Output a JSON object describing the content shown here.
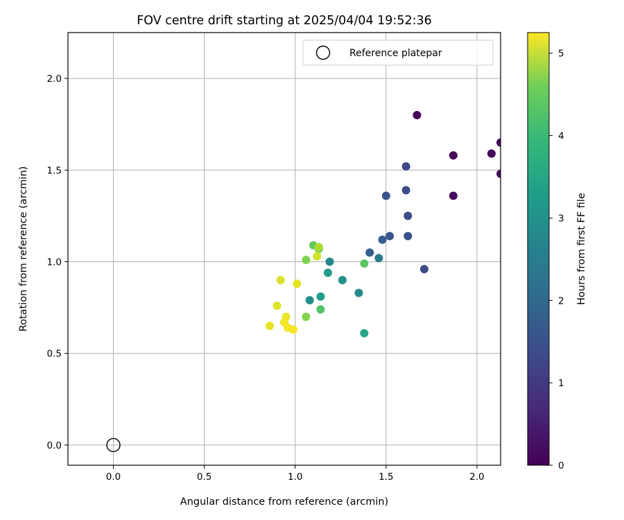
{
  "chart_data": {
    "type": "scatter",
    "title": "FOV centre drift starting at 2025/04/04 19:52:36",
    "xlabel": "Angular distance from reference (arcmin)",
    "ylabel": "Rotation from reference (arcmin)",
    "xlim": [
      -0.25,
      2.13
    ],
    "ylim": [
      -0.11,
      2.25
    ],
    "x_ticks": [
      "0.0",
      "0.5",
      "1.0",
      "1.5",
      "2.0"
    ],
    "y_ticks": [
      "0.0",
      "0.5",
      "1.0",
      "1.5",
      "2.0"
    ],
    "grid": true,
    "legend": {
      "placement": "top-right",
      "entries": [
        {
          "label": "Reference platepar",
          "marker": "open-circle",
          "color": "#000000"
        }
      ]
    },
    "reference_point": {
      "name": "Reference platepar",
      "x": 0.0,
      "y": 0.0
    },
    "colorbar": {
      "label": "Hours from first FF file",
      "colormap": "viridis",
      "range": [
        0,
        5.25
      ],
      "ticks": [
        "0",
        "1",
        "2",
        "3",
        "4",
        "5"
      ]
    },
    "series": [
      {
        "name": "FOV centre drift",
        "points": [
          {
            "x": 1.67,
            "y": 1.8,
            "c": 0.05
          },
          {
            "x": 1.87,
            "y": 1.58,
            "c": 0.1
          },
          {
            "x": 2.08,
            "y": 1.59,
            "c": 0.15
          },
          {
            "x": 2.13,
            "y": 1.65,
            "c": 0.1
          },
          {
            "x": 2.13,
            "y": 1.48,
            "c": 0.2
          },
          {
            "x": 1.87,
            "y": 1.36,
            "c": 0.2
          },
          {
            "x": 1.61,
            "y": 1.52,
            "c": 1.15
          },
          {
            "x": 1.61,
            "y": 1.39,
            "c": 1.2
          },
          {
            "x": 1.5,
            "y": 1.36,
            "c": 1.35
          },
          {
            "x": 1.62,
            "y": 1.25,
            "c": 1.2
          },
          {
            "x": 1.52,
            "y": 1.14,
            "c": 1.4
          },
          {
            "x": 1.62,
            "y": 1.14,
            "c": 1.3
          },
          {
            "x": 1.48,
            "y": 1.12,
            "c": 1.55
          },
          {
            "x": 1.41,
            "y": 1.05,
            "c": 1.6
          },
          {
            "x": 1.71,
            "y": 0.96,
            "c": 1.25
          },
          {
            "x": 1.46,
            "y": 1.02,
            "c": 2.2
          },
          {
            "x": 1.19,
            "y": 1.0,
            "c": 2.45
          },
          {
            "x": 1.26,
            "y": 0.9,
            "c": 2.65
          },
          {
            "x": 1.35,
            "y": 0.83,
            "c": 2.55
          },
          {
            "x": 1.18,
            "y": 0.94,
            "c": 2.9
          },
          {
            "x": 1.08,
            "y": 0.79,
            "c": 2.6
          },
          {
            "x": 1.14,
            "y": 0.81,
            "c": 2.95
          },
          {
            "x": 1.38,
            "y": 0.61,
            "c": 3.1
          },
          {
            "x": 1.14,
            "y": 0.74,
            "c": 3.8
          },
          {
            "x": 1.38,
            "y": 0.99,
            "c": 3.9
          },
          {
            "x": 1.1,
            "y": 1.09,
            "c": 4.0
          },
          {
            "x": 1.13,
            "y": 1.07,
            "c": 4.1
          },
          {
            "x": 1.06,
            "y": 1.01,
            "c": 4.2
          },
          {
            "x": 1.06,
            "y": 0.7,
            "c": 4.25
          },
          {
            "x": 1.13,
            "y": 1.08,
            "c": 4.6
          },
          {
            "x": 1.12,
            "y": 1.03,
            "c": 4.9
          },
          {
            "x": 0.92,
            "y": 0.9,
            "c": 4.95
          },
          {
            "x": 1.01,
            "y": 0.88,
            "c": 5.05
          },
          {
            "x": 0.9,
            "y": 0.76,
            "c": 5.0
          },
          {
            "x": 0.86,
            "y": 0.65,
            "c": 5.05
          },
          {
            "x": 0.95,
            "y": 0.7,
            "c": 5.1
          },
          {
            "x": 0.94,
            "y": 0.67,
            "c": 5.15
          },
          {
            "x": 0.96,
            "y": 0.64,
            "c": 5.2
          },
          {
            "x": 0.99,
            "y": 0.63,
            "c": 5.2
          }
        ]
      }
    ]
  }
}
